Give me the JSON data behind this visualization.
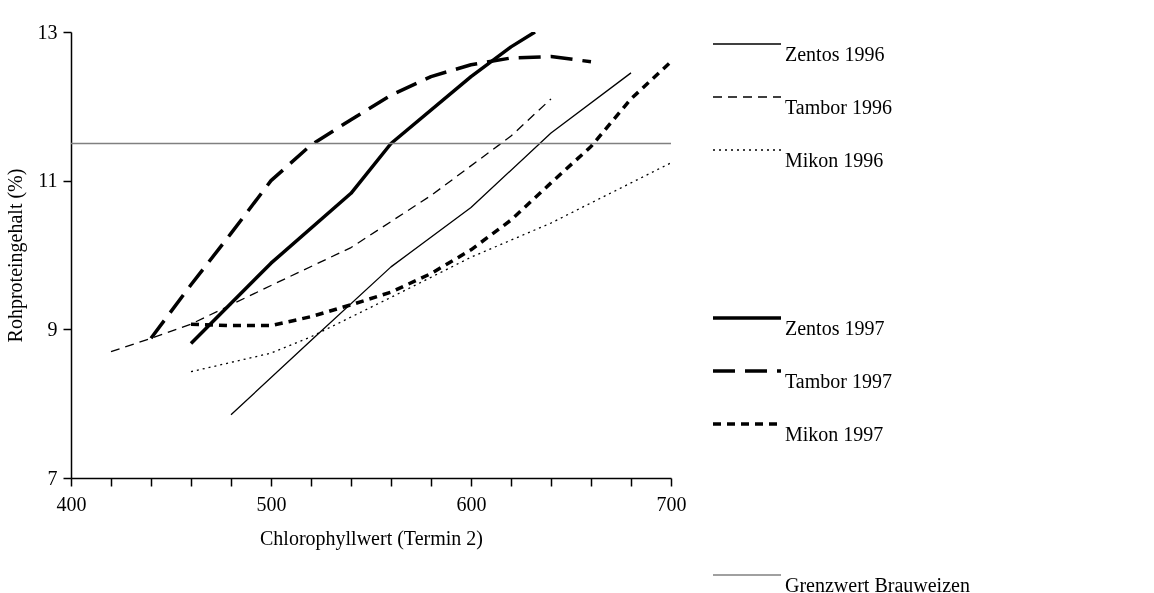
{
  "chart_data": {
    "type": "line",
    "xlabel": "Chlorophyllwert (Termin 2)",
    "ylabel": "Rohproteingehalt (%)",
    "xlim": [
      400,
      700
    ],
    "ylim": [
      7,
      13
    ],
    "xticks": [
      400,
      {
        "value": 420,
        "label": null
      },
      {
        "value": 440,
        "label": null
      },
      {
        "value": 460,
        "label": null
      },
      {
        "value": 480,
        "label": null
      },
      500,
      {
        "value": 520,
        "label": null
      },
      {
        "value": 540,
        "label": null
      },
      {
        "value": 560,
        "label": null
      },
      {
        "value": 580,
        "label": null
      },
      600,
      {
        "value": 620,
        "label": null
      },
      {
        "value": 640,
        "label": null
      },
      {
        "value": 660,
        "label": null
      },
      {
        "value": 680,
        "label": null
      },
      700
    ],
    "yticks": [
      7,
      9,
      11,
      13
    ],
    "grid": false,
    "legend": "right",
    "series": [
      {
        "name": "Zentos 1996",
        "color": "#000000",
        "line_style": "solid",
        "x": [
          480,
          520,
          560,
          600,
          640,
          680
        ],
        "values": [
          7.85,
          8.85,
          9.84,
          10.64,
          11.64,
          12.45
        ]
      },
      {
        "name": "Tambor 1996",
        "color": "#000000",
        "line_style": "dashed",
        "x": [
          420,
          440,
          460,
          500,
          540,
          580,
          620,
          640
        ],
        "values": [
          8.7,
          8.88,
          9.07,
          9.59,
          10.1,
          10.8,
          11.6,
          12.1
        ]
      },
      {
        "name": "Mikon 1996",
        "color": "#000000",
        "line_style": "dotted",
        "x": [
          460,
          500,
          520,
          560,
          600,
          640,
          680,
          700
        ],
        "values": [
          8.43,
          8.68,
          8.9,
          9.43,
          9.97,
          10.43,
          10.97,
          11.24
        ]
      },
      {
        "name": "Zentos 1997",
        "color": "#000000",
        "line_style": "solid",
        "x": [
          460,
          500,
          540,
          560,
          600,
          620,
          632
        ],
        "values": [
          8.81,
          9.89,
          10.83,
          11.5,
          12.4,
          12.8,
          13.0
        ]
      },
      {
        "name": "Tambor 1997",
        "color": "#000000",
        "line_style": "dashed",
        "x": [
          440,
          460,
          480,
          500,
          520,
          540,
          560,
          580,
          600,
          620,
          640,
          660
        ],
        "values": [
          8.88,
          9.6,
          10.29,
          11.0,
          11.48,
          11.82,
          12.15,
          12.4,
          12.56,
          12.65,
          12.67,
          12.6
        ]
      },
      {
        "name": "Mikon 1997",
        "color": "#000000",
        "line_style": "dotted",
        "x": [
          460,
          480,
          500,
          520,
          540,
          560,
          580,
          600,
          620,
          640,
          660,
          680,
          700
        ],
        "values": [
          9.07,
          9.05,
          9.05,
          9.17,
          9.33,
          9.5,
          9.75,
          10.07,
          10.47,
          10.97,
          11.46,
          12.1,
          12.6
        ]
      }
    ],
    "ref_lines": [
      {
        "axis": "y",
        "value": 11.5,
        "label": "Grenzwert Brauweizen",
        "color": "#808080",
        "line_style": "solid"
      }
    ]
  }
}
